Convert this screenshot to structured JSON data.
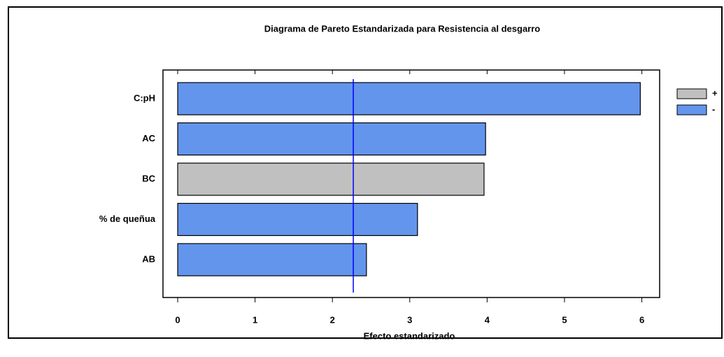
{
  "chart_data": {
    "type": "bar",
    "orientation": "horizontal",
    "title": "Diagrama de Pareto Estandarizada para Resistencia al desgarro",
    "x_label": "Efecto estandarizado",
    "categories": [
      "C:pH",
      "AC",
      "BC",
      "% de queñua",
      "AB"
    ],
    "series": [
      {
        "name": "+",
        "color": "#c0c0c0",
        "values": [
          null,
          null,
          3.96,
          null,
          null
        ]
      },
      {
        "name": "-",
        "color": "#6495ed",
        "values": [
          5.98,
          3.98,
          null,
          3.1,
          2.44
        ]
      }
    ],
    "reference_line": 2.27,
    "reference_color": "#0000ff",
    "xlim": [
      -0.19,
      6.23
    ],
    "xticks": [
      0,
      1,
      2,
      3,
      4,
      5,
      6
    ],
    "grid": false,
    "legend": "right"
  }
}
